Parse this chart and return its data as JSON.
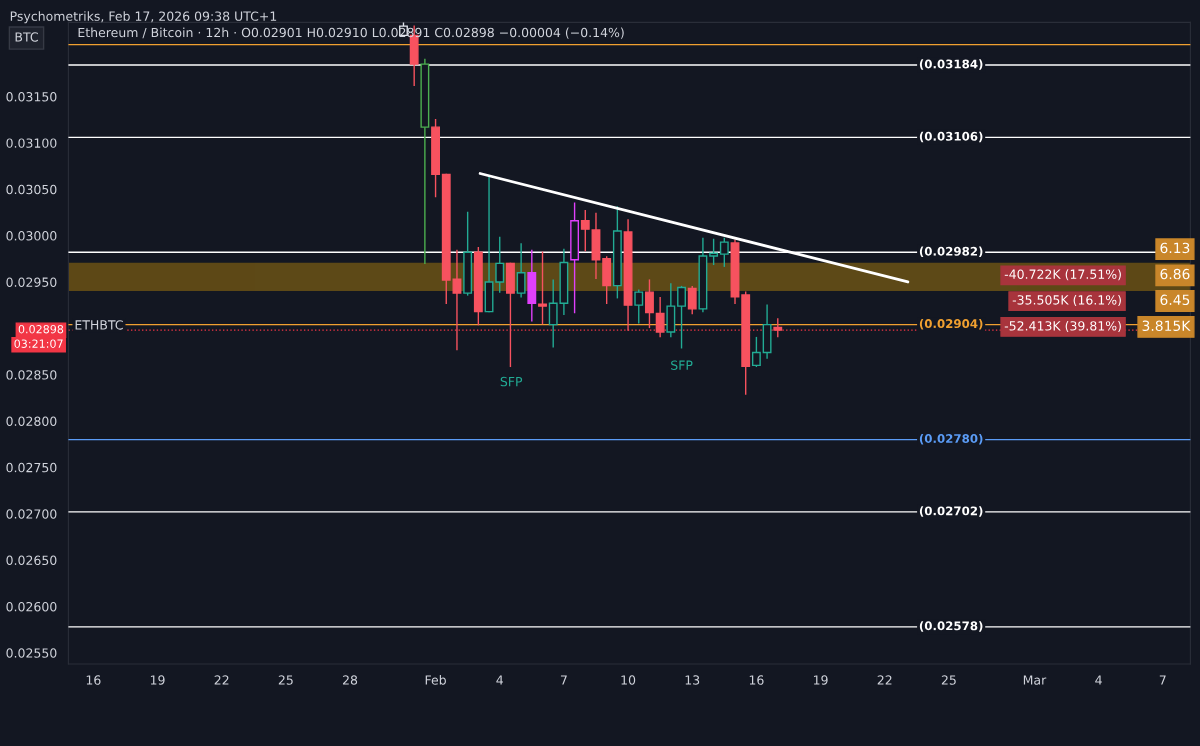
{
  "chart_data": {
    "type": "candlestick",
    "title": "Ethereum / Bitcoin · 12h · O0.02901 H0.02910 L0.02891 C0.02898 −0.00004 (−0.14%)",
    "subtitle": "Psychometriks, Feb 17, 2026 09:38 UTC+1",
    "x": [
      "2026-01-30T12:00",
      "2026-01-31T00:00",
      "2026-01-31T12:00",
      "2026-02-01T00:00",
      "2026-02-01T12:00",
      "2026-02-02T00:00",
      "2026-02-02T12:00",
      "2026-02-03T00:00",
      "2026-02-03T12:00",
      "2026-02-04T00:00",
      "2026-02-04T12:00",
      "2026-02-05T00:00",
      "2026-02-05T12:00",
      "2026-02-06T00:00",
      "2026-02-06T12:00",
      "2026-02-07T00:00",
      "2026-02-07T12:00",
      "2026-02-08T00:00",
      "2026-02-08T12:00",
      "2026-02-09T00:00",
      "2026-02-09T12:00",
      "2026-02-10T00:00",
      "2026-02-10T12:00",
      "2026-02-11T00:00",
      "2026-02-11T12:00",
      "2026-02-12T00:00",
      "2026-02-12T12:00",
      "2026-02-13T00:00",
      "2026-02-13T12:00",
      "2026-02-14T00:00",
      "2026-02-14T12:00",
      "2026-02-15T00:00",
      "2026-02-15T12:00",
      "2026-02-16T00:00",
      "2026-02-16T12:00",
      "2026-02-17T00:00"
    ],
    "ohlc": [
      [
        0.03216,
        0.0323,
        0.03216,
        0.03226
      ],
      [
        0.03216,
        0.03226,
        0.03162,
        0.03185
      ],
      [
        0.03117,
        0.0319,
        0.0297,
        0.03185
      ],
      [
        0.03117,
        0.03125,
        0.03042,
        0.03066
      ],
      [
        0.03066,
        0.03066,
        0.02927,
        0.02952
      ],
      [
        0.02953,
        0.02984,
        0.02877,
        0.02938
      ],
      [
        0.02938,
        0.03025,
        0.02936,
        0.02982
      ],
      [
        0.02982,
        0.02987,
        0.02904,
        0.02918
      ],
      [
        0.02918,
        0.03063,
        0.02918,
        0.0295
      ],
      [
        0.0295,
        0.02998,
        0.02939,
        0.0297
      ],
      [
        0.0297,
        0.0297,
        0.02859,
        0.02938
      ],
      [
        0.02938,
        0.02991,
        0.02934,
        0.0296
      ],
      [
        0.0296,
        0.02984,
        0.02908,
        0.02927
      ],
      [
        0.02926,
        0.02982,
        0.02905,
        0.02924
      ],
      [
        0.02904,
        0.02952,
        0.0288,
        0.02927
      ],
      [
        0.02927,
        0.02985,
        0.02915,
        0.02971
      ],
      [
        0.02974,
        0.03035,
        0.02917,
        0.03016
      ],
      [
        0.03016,
        0.03027,
        0.02984,
        0.03007
      ],
      [
        0.03006,
        0.03024,
        0.02954,
        0.02974
      ],
      [
        0.02975,
        0.02977,
        0.02927,
        0.02946
      ],
      [
        0.02946,
        0.03031,
        0.02933,
        0.03005
      ],
      [
        0.03004,
        0.03017,
        0.02898,
        0.02925
      ],
      [
        0.02925,
        0.02941,
        0.02906,
        0.02939
      ],
      [
        0.02939,
        0.02952,
        0.02901,
        0.02917
      ],
      [
        0.02916,
        0.02933,
        0.02891,
        0.02896
      ],
      [
        0.02896,
        0.02948,
        0.02891,
        0.02924
      ],
      [
        0.02924,
        0.02945,
        0.02879,
        0.02944
      ],
      [
        0.02943,
        0.02945,
        0.02916,
        0.02921
      ],
      [
        0.02921,
        0.02997,
        0.02918,
        0.02978
      ],
      [
        0.02978,
        0.02996,
        0.02969,
        0.02981
      ],
      [
        0.0298,
        0.02997,
        0.02967,
        0.02993
      ],
      [
        0.02992,
        0.02995,
        0.02927,
        0.02934
      ],
      [
        0.02936,
        0.02939,
        0.02829,
        0.02859
      ],
      [
        0.0286,
        0.0289,
        0.02859,
        0.02874
      ],
      [
        0.02874,
        0.02925,
        0.02868,
        0.02904
      ],
      [
        0.02901,
        0.0291,
        0.02891,
        0.02898
      ]
    ],
    "colors": [
      "#e0e3eb",
      "#f7525f",
      "#4caf50",
      "#f7525f",
      "#f7525f",
      "#f7525f",
      "#22ab94",
      "#f7525f",
      "#22ab94",
      "#22ab94",
      "#f7525f",
      "#22ab94",
      "#e040fb",
      "#f7525f",
      "#22ab94",
      "#22ab94",
      "#e040fb",
      "#f7525f",
      "#f7525f",
      "#f7525f",
      "#22ab94",
      "#f7525f",
      "#22ab94",
      "#f7525f",
      "#f7525f",
      "#22ab94",
      "#22ab94",
      "#f7525f",
      "#22ab94",
      "#22ab94",
      "#22ab94",
      "#f7525f",
      "#f7525f",
      "#22ab94",
      "#22ab94",
      "#f7525f"
    ],
    "series": [
      {
        "type": "line",
        "color": "#ffffff",
        "x": [
          "2026-02-03T02:00",
          "2026-02-23T02:00"
        ],
        "values": [
          0.03067,
          0.0295
        ]
      }
    ],
    "xlim": [
      "2026-01-14T20:00",
      "2026-03-08T07:00"
    ],
    "xticks": [
      {
        "value": "2026-01-16",
        "label": "16"
      },
      {
        "value": "2026-01-19",
        "label": "19"
      },
      {
        "value": "2026-01-22",
        "label": "22"
      },
      {
        "value": "2026-01-25",
        "label": "25"
      },
      {
        "value": "2026-01-28",
        "label": "28"
      },
      {
        "value": "2026-02-01",
        "label": "Feb"
      },
      {
        "value": "2026-02-04",
        "label": "4"
      },
      {
        "value": "2026-02-07",
        "label": "7"
      },
      {
        "value": "2026-02-10",
        "label": "10"
      },
      {
        "value": "2026-02-13",
        "label": "13"
      },
      {
        "value": "2026-02-16",
        "label": "16"
      },
      {
        "value": "2026-02-19",
        "label": "19"
      },
      {
        "value": "2026-02-22",
        "label": "22"
      },
      {
        "value": "2026-02-25",
        "label": "25"
      },
      {
        "value": "2026-03-01",
        "label": "Mar"
      },
      {
        "value": "2026-03-04",
        "label": "4"
      },
      {
        "value": "2026-03-07",
        "label": "7"
      }
    ],
    "ylim": [
      0.02538,
      0.0323
    ],
    "yticks": [
      {
        "value": 0.0255,
        "label": "0.02550"
      },
      {
        "value": 0.026,
        "label": "0.02600"
      },
      {
        "value": 0.0265,
        "label": "0.02650"
      },
      {
        "value": 0.027,
        "label": "0.02700"
      },
      {
        "value": 0.0275,
        "label": "0.02750"
      },
      {
        "value": 0.028,
        "label": "0.02800"
      },
      {
        "value": 0.0285,
        "label": "0.02850"
      },
      {
        "value": 0.029,
        "label": null
      },
      {
        "value": 0.0295,
        "label": "0.02950"
      },
      {
        "value": 0.03,
        "label": "0.03000"
      },
      {
        "value": 0.0305,
        "label": "0.03050"
      },
      {
        "value": 0.031,
        "label": "0.03100"
      },
      {
        "value": 0.0315,
        "label": "0.03150"
      }
    ],
    "ref_lines": [
      {
        "axis": "y",
        "value": 0.03206,
        "label": null,
        "color": "#f0a030"
      },
      {
        "axis": "y",
        "value": 0.03184,
        "label": "(0.03184)",
        "color": "#ffffff"
      },
      {
        "axis": "y",
        "value": 0.03106,
        "label": "(0.03106)",
        "color": "#ffffff"
      },
      {
        "axis": "y",
        "value": 0.02982,
        "label": "(0.02982)",
        "color": "#ffffff"
      },
      {
        "axis": "y",
        "value": 0.02904,
        "label": "(0.02904)",
        "color": "#f0a030"
      },
      {
        "axis": "y",
        "value": 0.0278,
        "label": "(0.02780)",
        "color": "#5b9cf6"
      },
      {
        "axis": "y",
        "value": 0.02702,
        "label": "(0.02702)",
        "color": "#ffffff"
      },
      {
        "axis": "y",
        "value": 0.02578,
        "label": "(0.02578)",
        "color": "#ffffff"
      },
      {
        "axis": "y",
        "value": 0.02898,
        "label": "0.02898",
        "color": "#f23645",
        "line_style": "dotted"
      }
    ],
    "bands": [
      {
        "axis": "y",
        "from": 0.02941,
        "to": 0.0297,
        "color": "#b8860b"
      }
    ],
    "annotations": [
      "BTC",
      "03:21:07",
      "ETHBTC",
      "SFP",
      "SFP",
      "6.13",
      "-40.722K (17.51%)",
      "6.86",
      "-35.505K (16.1%)",
      "6.45",
      "-52.413K (39.81%)",
      "3.815K"
    ]
  }
}
